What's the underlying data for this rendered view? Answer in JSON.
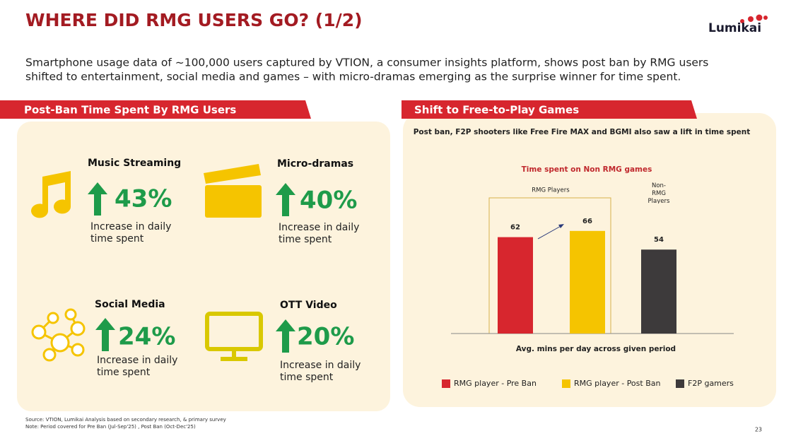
{
  "header": {
    "title": "WHERE DID RMG USERS GO? (1/2)",
    "logo": "Lumikai"
  },
  "intro": [
    "Smartphone usage data of ~100,000 users captured by VTION, a consumer insights platform, shows post ban by RMG users",
    "shifted to entertainment, social media and games – with micro-dramas emerging as the surprise winner for time spent."
  ],
  "left_panel": {
    "title": "Post-Ban Time Spent By RMG Users",
    "items": [
      {
        "title": "Music Streaming",
        "value": "43%",
        "desc": [
          "Increase in daily",
          "time spent"
        ]
      },
      {
        "title": "Micro-dramas",
        "value": "40%",
        "desc": [
          "Increase in daily",
          "time spent"
        ]
      },
      {
        "title": "Social Media",
        "value": "24%",
        "desc": [
          "Increase in daily",
          "time spent"
        ]
      },
      {
        "title": "OTT Video",
        "value": "20%",
        "desc": [
          "Increase in daily",
          "time spent"
        ]
      }
    ]
  },
  "right_panel": {
    "title": "Shift to Free-to-Play Games",
    "subtitle": "Post ban, F2P shooters like Free Fire MAX and BGMI also saw a lift in time spent"
  },
  "chart_data": {
    "type": "bar",
    "title": "Time spent on Non RMG games",
    "groups": [
      "RMG Players",
      "Non-RMG Players"
    ],
    "categories": [
      "RMG player - Pre Ban",
      "RMG player - Post Ban",
      "F2P gamers"
    ],
    "values": [
      62,
      66,
      54
    ],
    "colors": [
      "#d7262e",
      "#f5c400",
      "#3d3a3b"
    ],
    "xlabel": "Avg. mins per day across given period"
  },
  "footer": {
    "notes": [
      "Source: VTION, Lumikai Analysis based on secondary research, & primary survey",
      "Note: Period covered for Pre Ban (Jul-Sep'25) , Post Ban (Oct-Dec'25)"
    ],
    "page": "23"
  }
}
